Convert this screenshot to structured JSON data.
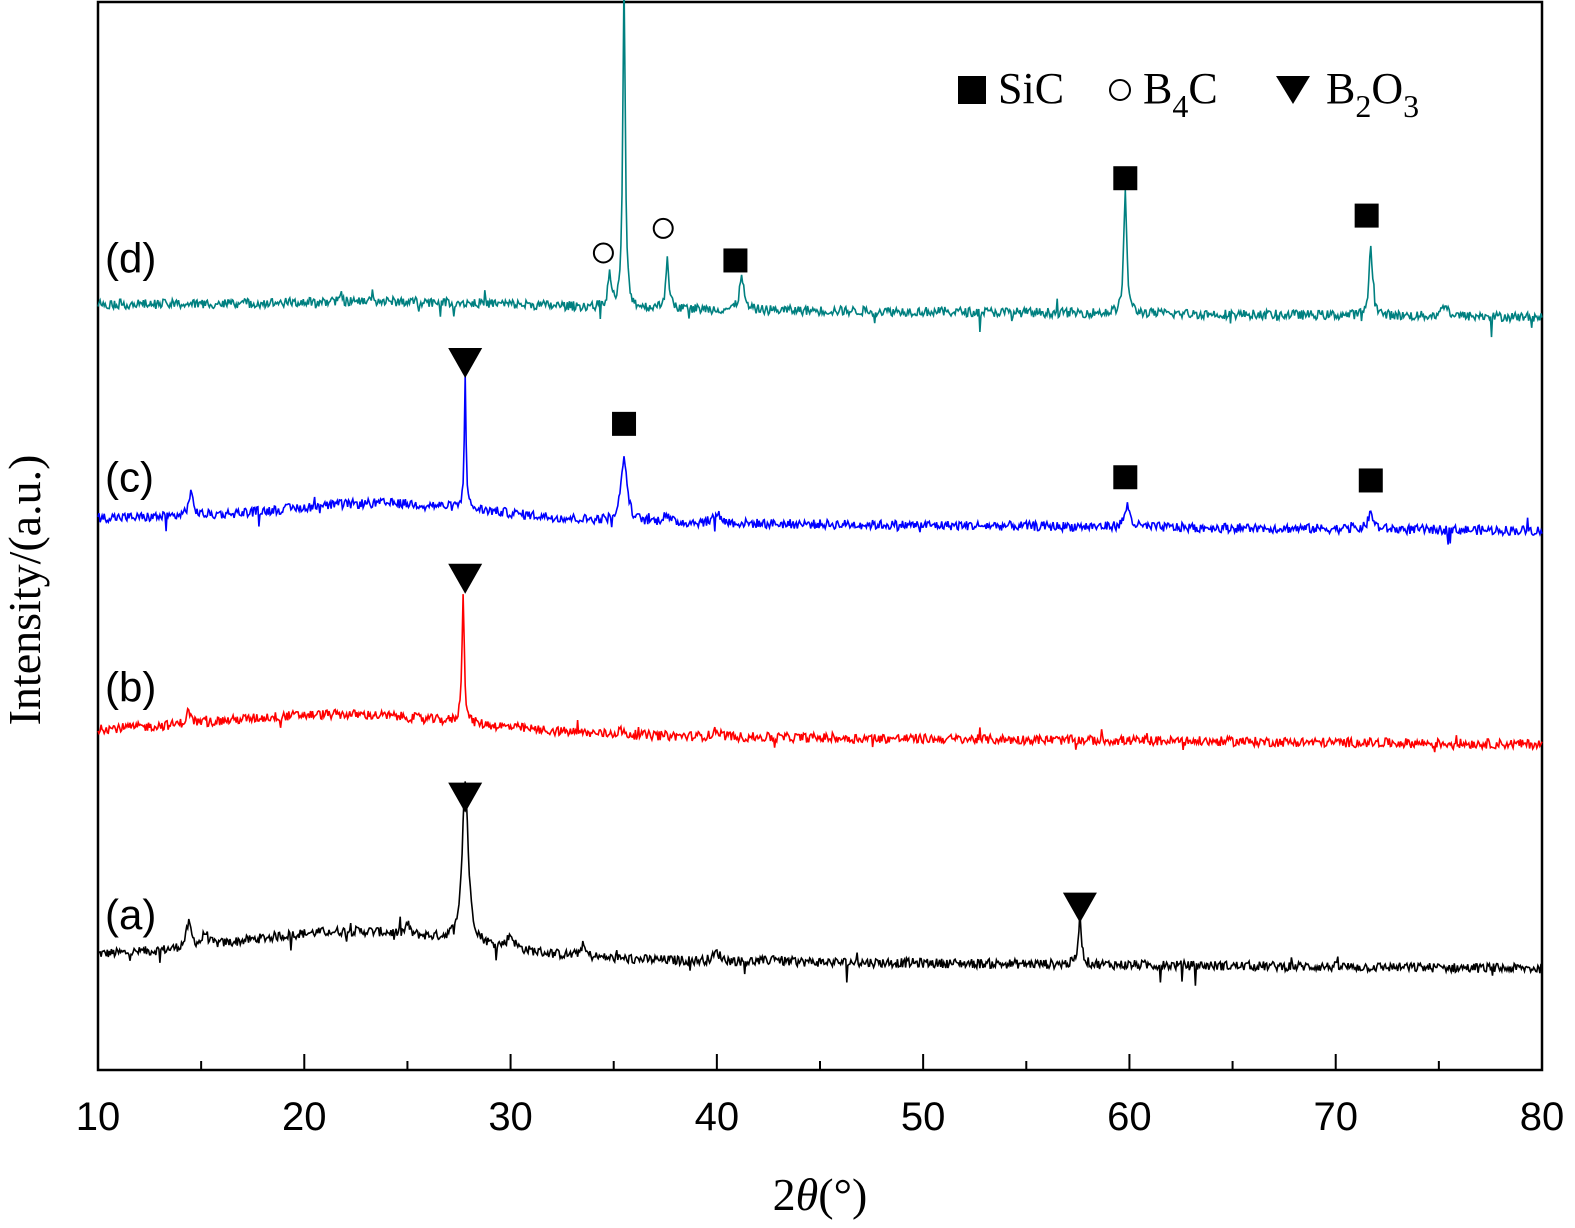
{
  "chart_data": {
    "type": "line",
    "xlabel": {
      "prefix": "2",
      "italic": "θ",
      "suffix": "(°)"
    },
    "ylabel": "Intensity/(a.u.)",
    "xlim": [
      10,
      80
    ],
    "x_ticks": [
      10,
      20,
      30,
      40,
      50,
      60,
      70,
      80
    ],
    "y_ticks_visible": false,
    "legend": {
      "placement": "top-right",
      "entries": [
        {
          "marker": "filled-square",
          "label": "SiC",
          "base": "SiC",
          "sub": ""
        },
        {
          "marker": "open-circle",
          "label": "B4C",
          "base": "B",
          "sub": "4",
          "tail": "C"
        },
        {
          "marker": "filled-down-triangle",
          "label": "B2O3",
          "base": "B",
          "sub": "2",
          "mid": "O",
          "sub2": "3"
        }
      ]
    },
    "series": [
      {
        "name": "(a)",
        "color": "#000000",
        "baseline": 0.095,
        "peaks": [
          [
            14.4,
            0.022,
            0.3
          ],
          [
            15.2,
            0.012,
            0.3
          ],
          [
            25.0,
            0.01,
            0.2
          ],
          [
            27.8,
            0.15,
            0.35
          ],
          [
            30.0,
            0.012,
            0.4
          ],
          [
            33.5,
            0.01,
            0.3
          ],
          [
            40.0,
            0.008,
            0.4
          ],
          [
            42.8,
            0.005,
            0.3
          ],
          [
            57.6,
            0.046,
            0.18
          ]
        ],
        "hump": [
          22.5,
          0.025,
          5.5
        ],
        "markers": [
          {
            "x": 27.8,
            "symbol": "filled-down-triangle",
            "y": 0.255
          },
          {
            "x": 57.6,
            "symbol": "filled-down-triangle",
            "y": 0.152
          }
        ]
      },
      {
        "name": "(b)",
        "color": "#ff0000",
        "baseline": 0.305,
        "peaks": [
          [
            14.4,
            0.012,
            0.25
          ],
          [
            27.7,
            0.118,
            0.14
          ],
          [
            35.3,
            0.004,
            0.3
          ],
          [
            40.0,
            0.006,
            0.4
          ]
        ],
        "hump": [
          22.0,
          0.018,
          6.0
        ],
        "markers": [
          {
            "x": 27.8,
            "symbol": "filled-down-triangle",
            "y": 0.46
          }
        ]
      },
      {
        "name": "(c)",
        "color": "#0000ff",
        "baseline": 0.505,
        "peaks": [
          [
            14.5,
            0.02,
            0.3
          ],
          [
            27.8,
            0.128,
            0.1
          ],
          [
            35.5,
            0.06,
            0.35
          ],
          [
            37.5,
            0.008,
            0.3
          ],
          [
            40.0,
            0.01,
            0.4
          ],
          [
            59.9,
            0.02,
            0.3
          ],
          [
            71.7,
            0.015,
            0.3
          ]
        ],
        "hump": [
          24.0,
          0.016,
          5.0
        ],
        "markers": [
          {
            "x": 27.8,
            "symbol": "filled-down-triangle",
            "y": 0.662
          },
          {
            "x": 35.5,
            "symbol": "filled-square",
            "y": 0.605
          },
          {
            "x": 59.8,
            "symbol": "filled-square",
            "y": 0.555
          },
          {
            "x": 71.7,
            "symbol": "filled-square",
            "y": 0.552
          }
        ]
      },
      {
        "name": "(d)",
        "color": "#008080",
        "baseline": 0.705,
        "peaks": [
          [
            21.8,
            0.01,
            0.1
          ],
          [
            23.3,
            0.01,
            0.1
          ],
          [
            34.8,
            0.03,
            0.2
          ],
          [
            35.5,
            0.308,
            0.14
          ],
          [
            37.6,
            0.048,
            0.18
          ],
          [
            41.2,
            0.035,
            0.22
          ],
          [
            59.8,
            0.112,
            0.18
          ],
          [
            71.7,
            0.065,
            0.2
          ],
          [
            75.3,
            0.012,
            0.3
          ]
        ],
        "hump": [
          25.0,
          0.005,
          6.0
        ],
        "markers": [
          {
            "x": 35.5,
            "symbol": "filled-square",
            "y": 1.02
          },
          {
            "x": 34.5,
            "symbol": "open-circle",
            "y": 0.765
          },
          {
            "x": 37.4,
            "symbol": "open-circle",
            "y": 0.788
          },
          {
            "x": 40.9,
            "symbol": "filled-square",
            "y": 0.758
          },
          {
            "x": 59.8,
            "symbol": "filled-square",
            "y": 0.835
          },
          {
            "x": 71.5,
            "symbol": "filled-square",
            "y": 0.8
          }
        ]
      }
    ],
    "series_label_y": [
      0.145,
      0.358,
      0.555,
      0.76
    ]
  }
}
